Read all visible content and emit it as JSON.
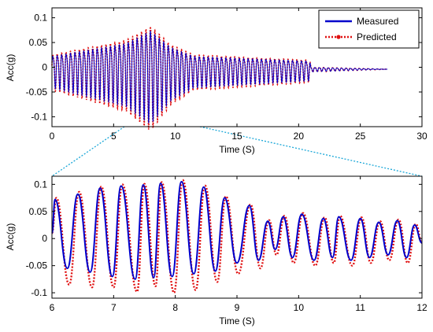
{
  "chart_data": [
    {
      "type": "line",
      "id": "full",
      "xlabel": "Time (S)",
      "ylabel": "Acc(g)",
      "xlim": [
        0,
        30
      ],
      "ylim": [
        -0.12,
        0.12
      ],
      "xticks": [
        0,
        5,
        10,
        15,
        20,
        25,
        30
      ],
      "yticks": [
        -0.1,
        -0.05,
        0,
        0.05,
        0.1
      ],
      "grid": false,
      "legend": {
        "placement": "top-right",
        "entries": [
          "Measured",
          "Predicted"
        ]
      },
      "zoom_window": [
        6,
        12
      ],
      "signal": {
        "duration": 27.2,
        "dominant_period": 0.36,
        "approx_peaks": [
          {
            "t": 6.0,
            "a": 0.07
          },
          {
            "t": 8.0,
            "a": 0.104
          },
          {
            "t": 9.6,
            "a": 0.06
          },
          {
            "t": 11.5,
            "a": 0.035
          },
          {
            "t": 20.9,
            "a": 0.022
          },
          {
            "t": 21.0,
            "a": 0.005
          },
          {
            "t": 27.2,
            "a": 0.0
          }
        ]
      },
      "series": [
        {
          "name": "Measured",
          "color": "#0000cc",
          "style": "solid"
        },
        {
          "name": "Predicted",
          "color": "#e01010",
          "style": "dotted",
          "marker": "dot"
        }
      ]
    },
    {
      "type": "line",
      "id": "zoom",
      "xlabel": "Time (S)",
      "ylabel": "Acc(g)",
      "xlim": [
        6,
        12
      ],
      "ylim": [
        -0.11,
        0.115
      ],
      "xticks": [
        6,
        7,
        8,
        9,
        10,
        11,
        12
      ],
      "yticks": [
        -0.1,
        -0.05,
        0,
        0.05,
        0.1
      ],
      "grid": false,
      "series": [
        {
          "name": "Measured",
          "color": "#0000cc",
          "peaks": [
            [
              6.05,
              0.072
            ],
            [
              6.42,
              0.082
            ],
            [
              6.78,
              0.093
            ],
            [
              7.12,
              0.097
            ],
            [
              7.48,
              0.099
            ],
            [
              7.76,
              0.102
            ],
            [
              8.1,
              0.105
            ],
            [
              8.46,
              0.095
            ],
            [
              8.8,
              0.075
            ],
            [
              9.2,
              0.061
            ],
            [
              9.5,
              0.032
            ],
            [
              9.75,
              0.04
            ],
            [
              10.05,
              0.045
            ],
            [
              10.4,
              0.037
            ],
            [
              10.65,
              0.04
            ],
            [
              11.0,
              0.037
            ],
            [
              11.3,
              0.03
            ],
            [
              11.6,
              0.033
            ],
            [
              11.88,
              0.025
            ]
          ],
          "troughs": [
            [
              6.25,
              -0.055
            ],
            [
              6.62,
              -0.062
            ],
            [
              6.98,
              -0.07
            ],
            [
              7.35,
              -0.075
            ],
            [
              7.65,
              -0.072
            ],
            [
              7.95,
              -0.07
            ],
            [
              8.3,
              -0.065
            ],
            [
              8.65,
              -0.06
            ],
            [
              9.0,
              -0.045
            ],
            [
              9.35,
              -0.04
            ],
            [
              9.62,
              -0.02
            ],
            [
              9.9,
              -0.035
            ],
            [
              10.25,
              -0.04
            ],
            [
              10.55,
              -0.035
            ],
            [
              10.85,
              -0.04
            ],
            [
              11.15,
              -0.035
            ],
            [
              11.45,
              -0.03
            ],
            [
              11.75,
              -0.035
            ]
          ]
        },
        {
          "name": "Predicted",
          "color": "#e01010",
          "peaks": [
            [
              6.07,
              0.075
            ],
            [
              6.44,
              0.086
            ],
            [
              6.8,
              0.096
            ],
            [
              7.14,
              0.1
            ],
            [
              7.5,
              0.101
            ],
            [
              7.78,
              0.104
            ],
            [
              8.12,
              0.108
            ],
            [
              8.48,
              0.098
            ],
            [
              8.82,
              0.078
            ],
            [
              9.22,
              0.063
            ],
            [
              9.52,
              0.034
            ],
            [
              9.77,
              0.042
            ],
            [
              10.07,
              0.047
            ],
            [
              10.42,
              0.039
            ],
            [
              10.67,
              0.042
            ],
            [
              11.02,
              0.039
            ],
            [
              11.32,
              0.032
            ],
            [
              11.62,
              0.035
            ],
            [
              11.9,
              0.027
            ]
          ],
          "troughs": [
            [
              6.28,
              -0.085
            ],
            [
              6.65,
              -0.09
            ],
            [
              7.0,
              -0.09
            ],
            [
              7.38,
              -0.098
            ],
            [
              7.68,
              -0.088
            ],
            [
              7.98,
              -0.1
            ],
            [
              8.33,
              -0.095
            ],
            [
              8.68,
              -0.08
            ],
            [
              9.02,
              -0.065
            ],
            [
              9.38,
              -0.055
            ],
            [
              9.64,
              -0.03
            ],
            [
              9.92,
              -0.045
            ],
            [
              10.27,
              -0.05
            ],
            [
              10.57,
              -0.045
            ],
            [
              10.87,
              -0.05
            ],
            [
              11.17,
              -0.045
            ],
            [
              11.47,
              -0.04
            ],
            [
              11.77,
              -0.045
            ]
          ]
        }
      ]
    }
  ]
}
